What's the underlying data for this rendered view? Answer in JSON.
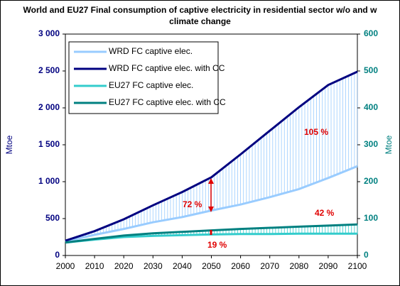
{
  "chart_data": {
    "type": "line",
    "title": "World and EU27  Final consumption of captive electricity  in residential sector w/o and w climate change",
    "y_label": "Mtoe",
    "y2_label": "Mtoe",
    "x": [
      2000,
      2010,
      2020,
      2030,
      2040,
      2050,
      2060,
      2070,
      2080,
      2090,
      2100
    ],
    "xlim": [
      2000,
      2100
    ],
    "xticks": [
      2000,
      2010,
      2020,
      2030,
      2040,
      2050,
      2060,
      2070,
      2080,
      2090,
      2100
    ],
    "ylim": [
      0,
      3000
    ],
    "yticks": [
      0,
      500,
      {
        "value": 1000,
        "label": "1 000"
      },
      {
        "value": 1500,
        "label": "1 500"
      },
      {
        "value": 2000,
        "label": "2 000"
      },
      {
        "value": 2500,
        "label": "2 500"
      },
      {
        "value": 3000,
        "label": "3 000"
      }
    ],
    "y2lim": [
      0,
      600
    ],
    "y2ticks": [
      0,
      100,
      200,
      300,
      400,
      500,
      600
    ],
    "series": [
      {
        "name": "WRD FC captive elec.",
        "color": "#99ccff",
        "values": [
          190,
          280,
          360,
          450,
          520,
          610,
          690,
          790,
          900,
          1050,
          1210
        ]
      },
      {
        "name": "WRD FC captive elec. with CC",
        "color": "#000080",
        "values": [
          200,
          330,
          490,
          680,
          860,
          1060,
          1370,
          1690,
          2010,
          2310,
          2490
        ]
      },
      {
        "name": "EU27 FC captive elec.",
        "color": "#33cccc",
        "axis": "y2",
        "values": [
          35,
          43,
          50,
          53,
          55,
          57,
          58,
          58,
          59,
          59,
          59
        ]
      },
      {
        "name": "EU27 FC captive elec. with CC",
        "color": "#008080",
        "axis": "y2",
        "values": [
          35,
          45,
          54,
          60,
          64,
          68,
          72,
          75,
          78,
          81,
          84
        ]
      }
    ],
    "annotations": [
      "72 %",
      "105 %",
      "42 %",
      "19 %"
    ]
  }
}
